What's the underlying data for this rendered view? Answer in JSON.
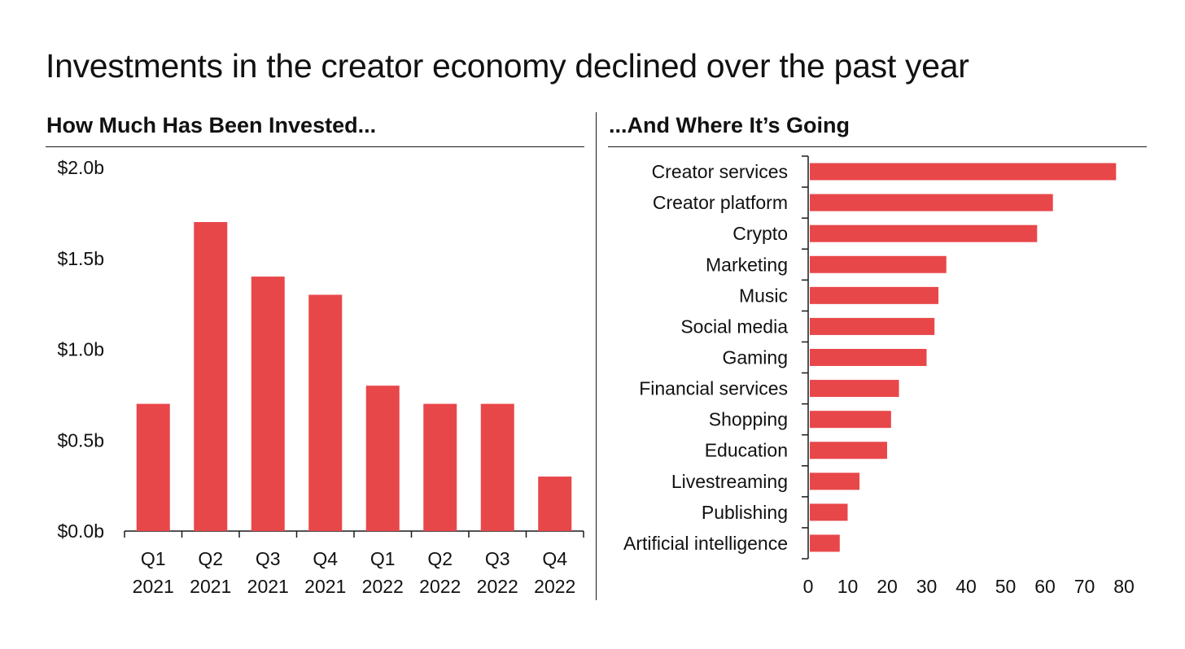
{
  "title": "Investments in the creator economy declined over the past year",
  "colors": {
    "bar": "#E8474A",
    "axis": "#1a1a1a",
    "text": "#111111"
  },
  "chart_data": [
    {
      "type": "bar",
      "title": "How Much Has Been Invested...",
      "categories": [
        "Q1 2021",
        "Q2 2021",
        "Q3 2021",
        "Q4 2021",
        "Q1 2022",
        "Q2 2022",
        "Q3 2022",
        "Q4 2022"
      ],
      "category_lines": [
        [
          "Q1",
          "2021"
        ],
        [
          "Q2",
          "2021"
        ],
        [
          "Q3",
          "2021"
        ],
        [
          "Q4",
          "2021"
        ],
        [
          "Q1",
          "2022"
        ],
        [
          "Q2",
          "2022"
        ],
        [
          "Q3",
          "2022"
        ],
        [
          "Q4",
          "2022"
        ]
      ],
      "values": [
        0.7,
        1.7,
        1.4,
        1.3,
        0.8,
        0.7,
        0.7,
        0.3
      ],
      "ylim": [
        0,
        2.0
      ],
      "yticks": [
        0,
        0.5,
        1.0,
        1.5,
        2.0
      ],
      "ytick_labels": [
        "$0.0b",
        "$0.5b",
        "$1.0b",
        "$1.5b",
        "$2.0b"
      ],
      "xlabel": "",
      "ylabel": "",
      "grid": false
    },
    {
      "type": "bar",
      "orientation": "horizontal",
      "title": "...And Where It’s Going",
      "categories": [
        "Creator services",
        "Creator platform",
        "Crypto",
        "Marketing",
        "Music",
        "Social media",
        "Gaming",
        "Financial services",
        "Shopping",
        "Education",
        "Livestreaming",
        "Publishing",
        "Artificial intelligence"
      ],
      "values": [
        78,
        62,
        58,
        35,
        33,
        32,
        30,
        23,
        21,
        20,
        13,
        10,
        8
      ],
      "xlim": [
        0,
        80
      ],
      "xticks": [
        0,
        10,
        20,
        30,
        40,
        50,
        60,
        70,
        80
      ],
      "xtick_labels": [
        "0",
        "10",
        "20",
        "30",
        "40",
        "50",
        "60",
        "70",
        "80"
      ],
      "xlabel": "",
      "ylabel": "",
      "grid": false
    }
  ]
}
